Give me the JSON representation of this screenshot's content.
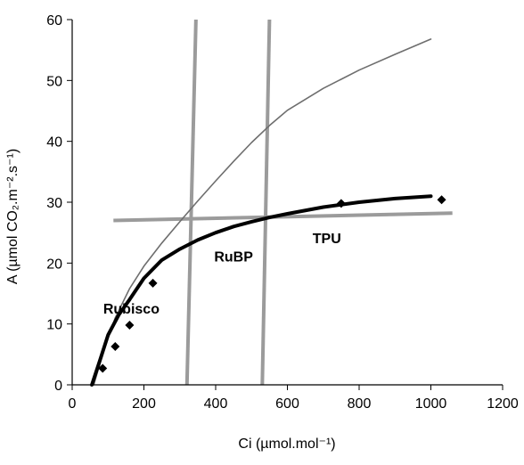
{
  "chart_data": {
    "type": "line",
    "title": "",
    "xlabel": "Ci (µmol.mol⁻¹)",
    "ylabel": "A (µmol CO₂.m⁻².s⁻¹)",
    "xlim": [
      0,
      1200
    ],
    "ylim": [
      0,
      60
    ],
    "xticks": [
      0,
      200,
      400,
      600,
      800,
      1000,
      1200
    ],
    "yticks": [
      0,
      10,
      20,
      30,
      40,
      50,
      60
    ],
    "grid": false,
    "legend": "none",
    "series": [
      {
        "style": "thin-gray-line",
        "color": "#6e6e6e",
        "x": [
          60,
          90,
          120,
          160,
          200,
          250,
          300,
          350,
          400,
          450,
          500,
          550,
          600,
          700,
          800,
          900,
          1000
        ],
        "y": [
          0,
          6,
          11,
          15.8,
          19.5,
          23.3,
          26.8,
          30.2,
          33.5,
          36.7,
          39.8,
          42.6,
          45.1,
          48.7,
          51.7,
          54.3,
          56.8
        ]
      },
      {
        "style": "thick-black-line",
        "color": "#000000",
        "x": [
          55,
          80,
          100,
          130,
          160,
          200,
          250,
          300,
          350,
          400,
          450,
          500,
          550,
          600,
          700,
          800,
          900,
          1000
        ],
        "y": [
          0,
          4.5,
          8.2,
          11.5,
          14,
          17.5,
          20.5,
          22.3,
          23.8,
          25,
          26,
          26.8,
          27.5,
          28.1,
          29.2,
          30,
          30.6,
          31
        ]
      },
      {
        "style": "diamond-markers",
        "color": "#000000",
        "x": [
          85,
          120,
          160,
          225,
          750,
          1030
        ],
        "y": [
          2.7,
          6.3,
          9.8,
          16.7,
          29.8,
          30.4
        ]
      }
    ],
    "limit_lines": [
      {
        "color": "#9b9b9b",
        "x": [
          320,
          345
        ],
        "y": [
          0,
          60
        ]
      },
      {
        "color": "#9b9b9b",
        "x": [
          530,
          550
        ],
        "y": [
          0,
          60
        ]
      },
      {
        "color": "#9b9b9b",
        "x": [
          115,
          1060
        ],
        "y": [
          27,
          28.2
        ]
      }
    ],
    "annotations": [
      {
        "text": "Rubisco",
        "x": 165,
        "y": 11.7
      },
      {
        "text": "RuBP",
        "x": 450,
        "y": 20.3
      },
      {
        "text": "TPU",
        "x": 710,
        "y": 23.3
      }
    ]
  }
}
